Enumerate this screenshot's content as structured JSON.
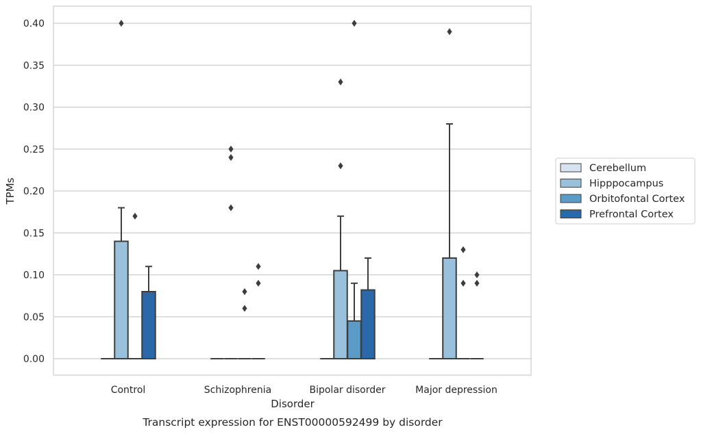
{
  "chart_data": {
    "type": "box",
    "title": "",
    "caption": "Transcript expression for ENST00000592499 by disorder",
    "xlabel": "Disorder",
    "ylabel": "TPMs",
    "ylim": [
      -0.02,
      0.42
    ],
    "yticks": [
      "0.00",
      "0.05",
      "0.10",
      "0.15",
      "0.20",
      "0.25",
      "0.30",
      "0.35",
      "0.40"
    ],
    "ytick_values": [
      0,
      0.05,
      0.1,
      0.15,
      0.2,
      0.25,
      0.3,
      0.35,
      0.4
    ],
    "grid": true,
    "legend_placement": "center-right",
    "categories": [
      "Control",
      "Schizophrenia",
      "Bipolar disorder",
      "Major depression"
    ],
    "series": [
      {
        "name": "Cerebellum",
        "color": "#d7e4f0",
        "boxes": [
          {
            "q1": 0,
            "median": 0,
            "q3": 0,
            "whisker_low": 0,
            "whisker_high": 0,
            "outliers": []
          },
          {
            "q1": 0,
            "median": 0,
            "q3": 0,
            "whisker_low": 0,
            "whisker_high": 0,
            "outliers": []
          },
          {
            "q1": 0,
            "median": 0,
            "q3": 0,
            "whisker_low": 0,
            "whisker_high": 0,
            "outliers": []
          },
          {
            "q1": 0,
            "median": 0,
            "q3": 0,
            "whisker_low": 0,
            "whisker_high": 0,
            "outliers": []
          }
        ]
      },
      {
        "name": "Hipppocampus",
        "color": "#9ac1dc",
        "boxes": [
          {
            "q1": 0,
            "median": 0,
            "q3": 0.14,
            "whisker_low": 0,
            "whisker_high": 0.18,
            "outliers": [
              0.4
            ]
          },
          {
            "q1": 0,
            "median": 0,
            "q3": 0,
            "whisker_low": 0,
            "whisker_high": 0,
            "outliers": [
              0.25,
              0.24,
              0.18
            ]
          },
          {
            "q1": 0,
            "median": 0,
            "q3": 0.105,
            "whisker_low": 0,
            "whisker_high": 0.17,
            "outliers": [
              0.33,
              0.23
            ]
          },
          {
            "q1": 0,
            "median": 0,
            "q3": 0.12,
            "whisker_low": 0,
            "whisker_high": 0.28,
            "outliers": [
              0.39
            ]
          }
        ]
      },
      {
        "name": "Orbitofontal Cortex",
        "color": "#5a9bc8",
        "boxes": [
          {
            "q1": 0,
            "median": 0,
            "q3": 0,
            "whisker_low": 0,
            "whisker_high": 0,
            "outliers": [
              0.17
            ]
          },
          {
            "q1": 0,
            "median": 0,
            "q3": 0,
            "whisker_low": 0,
            "whisker_high": 0,
            "outliers": [
              0.08,
              0.06
            ]
          },
          {
            "q1": 0,
            "median": 0,
            "q3": 0.045,
            "whisker_low": 0,
            "whisker_high": 0.09,
            "outliers": [
              0.4
            ]
          },
          {
            "q1": 0,
            "median": 0,
            "q3": 0,
            "whisker_low": 0,
            "whisker_high": 0,
            "outliers": [
              0.13,
              0.09
            ]
          }
        ]
      },
      {
        "name": "Prefrontal Cortex",
        "color": "#2a69a9",
        "boxes": [
          {
            "q1": 0,
            "median": 0,
            "q3": 0.08,
            "whisker_low": 0,
            "whisker_high": 0.11,
            "outliers": []
          },
          {
            "q1": 0,
            "median": 0,
            "q3": 0,
            "whisker_low": 0,
            "whisker_high": 0,
            "outliers": [
              0.11,
              0.09
            ]
          },
          {
            "q1": 0,
            "median": 0,
            "q3": 0.082,
            "whisker_low": 0,
            "whisker_high": 0.12,
            "outliers": []
          },
          {
            "q1": 0,
            "median": 0,
            "q3": 0,
            "whisker_low": 0,
            "whisker_high": 0,
            "outliers": [
              0.1,
              0.09
            ]
          }
        ]
      }
    ]
  }
}
